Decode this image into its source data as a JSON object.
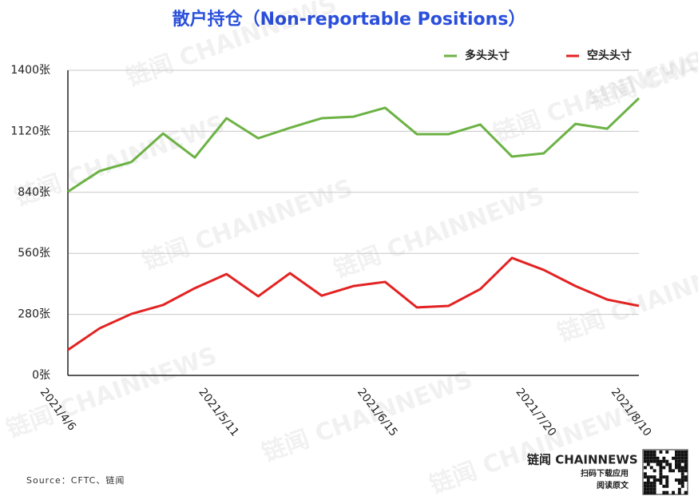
{
  "chart_data": {
    "type": "line",
    "title": "散户持仓（Non-reportable Positions）",
    "categories": [
      "2021/4/6",
      null,
      null,
      null,
      null,
      "2021/5/11",
      null,
      null,
      null,
      null,
      "2021/6/15",
      null,
      null,
      null,
      null,
      "2021/7/20",
      null,
      null,
      "2021/8/10"
    ],
    "series": [
      {
        "name": "多头头寸",
        "color": "#6cb244",
        "values": [
          843,
          938,
          979,
          1110,
          1000,
          1180,
          1088,
          1136,
          1180,
          1187,
          1228,
          1107,
          1107,
          1151,
          1004,
          1019,
          1154,
          1132,
          1272
        ]
      },
      {
        "name": "空头头寸",
        "color": "#e32222",
        "values": [
          117,
          216,
          282,
          323,
          400,
          465,
          363,
          469,
          366,
          410,
          429,
          312,
          319,
          396,
          539,
          484,
          410,
          348,
          319
        ]
      }
    ],
    "ylim": [
      0,
      1400
    ],
    "yticks": [
      {
        "value": 0,
        "label": "0张"
      },
      {
        "value": 280,
        "label": "280张"
      },
      {
        "value": 560,
        "label": "560张"
      },
      {
        "value": 840,
        "label": "840张"
      },
      {
        "value": 1120,
        "label": "1120张"
      },
      {
        "value": 1400,
        "label": "1400张"
      }
    ],
    "grid": true,
    "legend": "top-right",
    "source": "Source：CFTC、链闻"
  },
  "branding": {
    "watermark": "链闻 CHAINNEWS",
    "logo": "链闻 CHAINNEWS",
    "line1": "扫码下载应用",
    "line2": "阅读原文"
  }
}
